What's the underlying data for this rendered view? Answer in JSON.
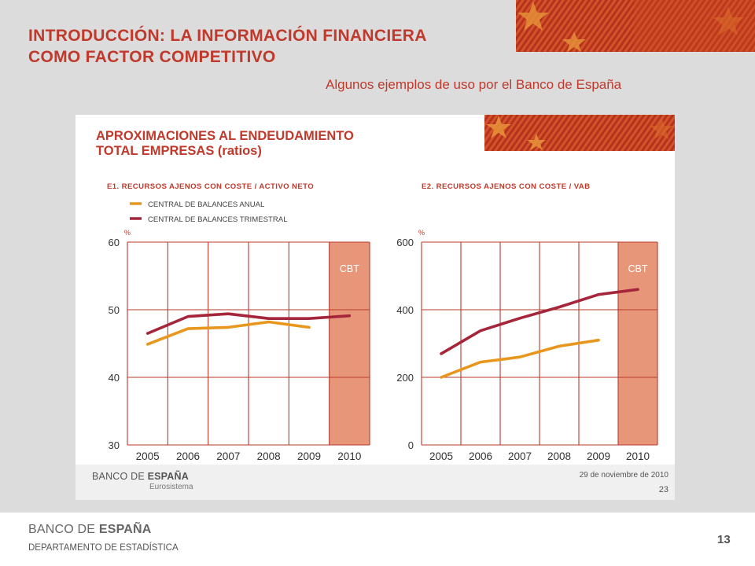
{
  "slide": {
    "title_line1": "INTRODUCCIÓN: LA INFORMACIÓN FINANCIERA",
    "title_line2": "COMO FACTOR COMPETITIVO",
    "subtitle": "Algunos ejemplos de uso por el Banco de España",
    "page_number": "13",
    "footer_logo_light": "BANCO DE ",
    "footer_logo_bold": "ESPAÑA",
    "department": "DEPARTAMENTO  DE ESTADÍSTICA"
  },
  "panel": {
    "title_line1": "APROXIMACIONES AL ENDEUDAMIENTO",
    "title_line2": "TOTAL EMPRESAS (ratios)",
    "logo_light": "BANCO DE ",
    "logo_bold": "ESPAÑA",
    "logo_sub": "Eurosistema",
    "date": "29 de noviembre de 2010",
    "page": "23"
  },
  "colors": {
    "accent": "#c0392b",
    "anual": "#e8961e",
    "trimestral": "#a5263a",
    "grid": "#b83a2a",
    "cbt_band": "#e8967a"
  },
  "chart_data": [
    {
      "type": "line",
      "title": "E1. RECURSOS AJENOS CON COSTE / ACTIVO NETO",
      "unit": "%",
      "categories": [
        "2005",
        "2006",
        "2007",
        "2008",
        "2009",
        "2010"
      ],
      "ylim": [
        30,
        60
      ],
      "yticks": [
        "30",
        "40",
        "50",
        "60"
      ],
      "band_label": "CBT",
      "legend": [
        "CENTRAL DE BALANCES ANUAL",
        "CENTRAL DE BALANCES TRIMESTRAL"
      ],
      "series": [
        {
          "name": "CENTRAL DE BALANCES ANUAL",
          "values": [
            44.9,
            47.2,
            47.4,
            48.2,
            47.4,
            null
          ]
        },
        {
          "name": "CENTRAL DE BALANCES TRIMESTRAL",
          "values": [
            46.5,
            49.0,
            49.4,
            48.7,
            48.7,
            49.1
          ]
        }
      ]
    },
    {
      "type": "line",
      "title": "E2. RECURSOS AJENOS CON COSTE / VAB",
      "unit": "%",
      "categories": [
        "2005",
        "2006",
        "2007",
        "2008",
        "2009",
        "2010"
      ],
      "ylim": [
        0,
        600
      ],
      "yticks": [
        "0",
        "200",
        "400",
        "600"
      ],
      "band_label": "CBT",
      "series": [
        {
          "name": "CENTRAL DE BALANCES ANUAL",
          "values": [
            200,
            245,
            260,
            292,
            310,
            null
          ]
        },
        {
          "name": "CENTRAL DE BALANCES TRIMESTRAL",
          "values": [
            270,
            338,
            375,
            408,
            445,
            460
          ]
        }
      ]
    }
  ]
}
